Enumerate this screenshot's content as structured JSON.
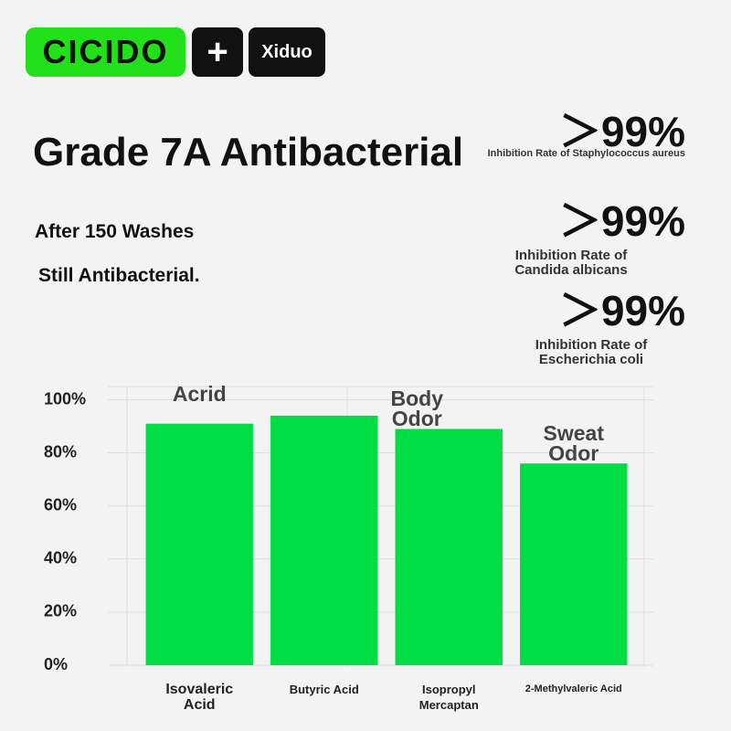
{
  "brand": "CICIDO",
  "connector": "+",
  "partner": "Xiduo",
  "headline": "Grade 7A Antibacterial",
  "subtitle_lines": [
    "After 150 Washes",
    "Still Antibacterial."
  ],
  "stats": [
    {
      "rate": "＞99%",
      "label": "Inhibition Rate of Staphylococcus aureus"
    },
    {
      "rate": "＞99%",
      "label": "Inhibition Rate of Candida albicans"
    },
    {
      "rate": "＞99%",
      "label": "Inhibition Rate of Escherichia coli"
    }
  ],
  "chart_data": {
    "type": "bar",
    "categories": [
      "Isovaleric Acid",
      "Butyric Acid",
      "Isopropyl Mercaptan",
      "2-Methylvaleric Acid"
    ],
    "values": [
      91,
      94,
      89,
      76
    ],
    "bar_notes": [
      "Acrid",
      null,
      "Body Odor",
      "Sweat Odor"
    ],
    "color": "#00dd44",
    "ylim": [
      0,
      105
    ],
    "yticks": [
      {
        "value": 0,
        "label": "0%"
      },
      {
        "value": 20,
        "label": "20%"
      },
      {
        "value": 40,
        "label": "40%"
      },
      {
        "value": 60,
        "label": "60%"
      },
      {
        "value": 80,
        "label": "80%"
      },
      {
        "value": 100,
        "label": "100%"
      }
    ],
    "grid": true
  }
}
